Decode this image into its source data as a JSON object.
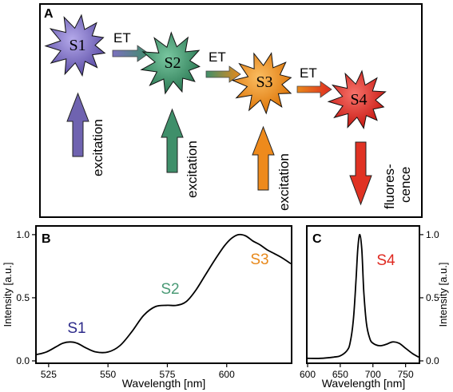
{
  "panel_a": {
    "label": "A",
    "stars": [
      {
        "label": "S1",
        "color": "#7b6fbe"
      },
      {
        "label": "S2",
        "color": "#3f8f6a"
      },
      {
        "label": "S3",
        "color": "#e8891b"
      },
      {
        "label": "S4",
        "color": "#df2a21"
      }
    ],
    "transfer_label": "ET",
    "excitation_label": "excitation",
    "fluorescence_lines": [
      "fluores-",
      "cence"
    ],
    "arrow_colors": [
      "#6f63b0",
      "#3f8f6a",
      "#ee8a1c",
      "#e03223"
    ]
  },
  "panel_b": {
    "label": "B",
    "ylabel": "Intensity [a.u.]",
    "xlabel": "Wavelength [nm]",
    "peak_labels": [
      {
        "text": "S1",
        "color": "#2c2a8a"
      },
      {
        "text": "S2",
        "color": "#4a9a76"
      },
      {
        "text": "S3",
        "color": "#e8891b"
      }
    ]
  },
  "panel_c": {
    "label": "C",
    "ylabel": "Intensity [a.u.]",
    "xlabel": "Wavelength [nm]",
    "peak_label": {
      "text": "S4",
      "color": "#df2a21"
    }
  },
  "chart_data": [
    {
      "type": "line",
      "panel": "B",
      "xlabel": "Wavelength [nm]",
      "ylabel": "Intensity [a.u.]",
      "xlim": [
        520,
        627
      ],
      "ylim": [
        0,
        1.05
      ],
      "xticks": [
        "525",
        "550",
        "575",
        "600"
      ],
      "yticks": [
        "0.0",
        "0.5",
        "1.0"
      ],
      "x": [
        520,
        524,
        528,
        531,
        534,
        537,
        541,
        545,
        550,
        555,
        560,
        565,
        570,
        575,
        579,
        583,
        587,
        591,
        595,
        599,
        602,
        605,
        608,
        611,
        614,
        617,
        620,
        623,
        627
      ],
      "y": [
        0.05,
        0.07,
        0.11,
        0.14,
        0.15,
        0.14,
        0.1,
        0.07,
        0.07,
        0.12,
        0.23,
        0.36,
        0.43,
        0.44,
        0.44,
        0.47,
        0.56,
        0.68,
        0.8,
        0.91,
        0.97,
        1.0,
        0.99,
        0.95,
        0.92,
        0.88,
        0.85,
        0.82,
        0.77
      ]
    },
    {
      "type": "line",
      "panel": "C",
      "xlabel": "Wavelength [nm]",
      "ylabel": "Intensity [a.u.]",
      "xlim": [
        600,
        770
      ],
      "ylim": [
        0,
        1.05
      ],
      "xticks": [
        "600",
        "650",
        "700",
        "750"
      ],
      "yticks": [
        "0.0",
        "0.5",
        "1.0"
      ],
      "x": [
        600,
        620,
        640,
        650,
        660,
        665,
        670,
        674,
        677,
        680,
        683,
        686,
        690,
        695,
        700,
        710,
        720,
        730,
        740,
        750,
        760,
        770
      ],
      "y": [
        0.02,
        0.02,
        0.03,
        0.04,
        0.08,
        0.14,
        0.32,
        0.63,
        0.9,
        1.0,
        0.88,
        0.55,
        0.3,
        0.18,
        0.14,
        0.12,
        0.13,
        0.15,
        0.14,
        0.1,
        0.06,
        0.03
      ]
    }
  ]
}
